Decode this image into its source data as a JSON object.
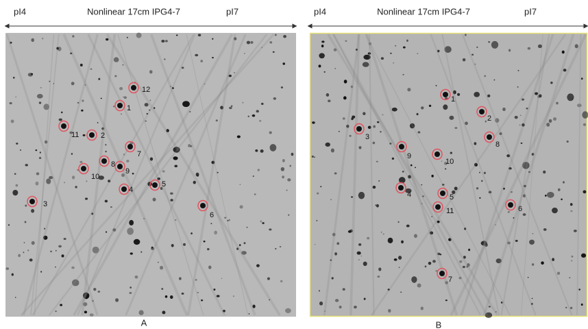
{
  "panels": [
    {
      "header": {
        "left": "pI4",
        "title": "Nonlinear 17cm IPG4-7",
        "right": "pI7"
      },
      "spots": [
        "12",
        "1",
        "11",
        "2",
        "7",
        "8",
        "9",
        "10",
        "5",
        "4",
        "3",
        "6"
      ],
      "caption": "A"
    },
    {
      "header": {
        "left": "pI4",
        "title": "Nonlinear 17cm IPG4-7",
        "right": "pI7"
      },
      "spots": [
        "1",
        "2",
        "3",
        "8",
        "9",
        "10",
        "4",
        "5",
        "6",
        "11",
        "7"
      ],
      "caption": "B"
    }
  ]
}
